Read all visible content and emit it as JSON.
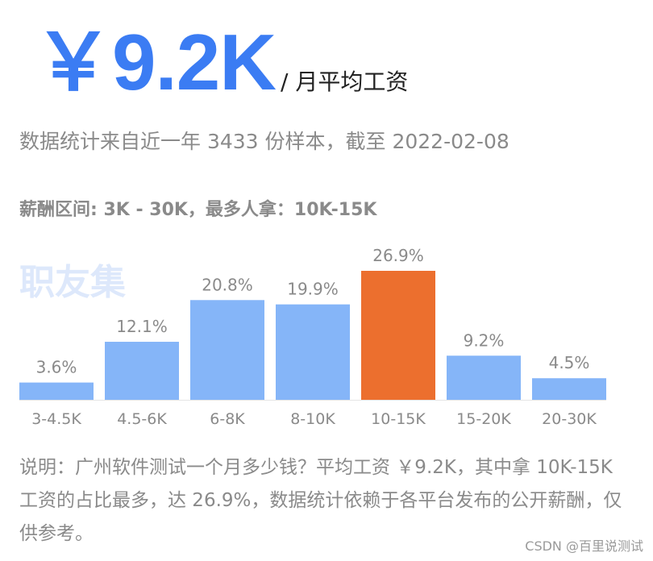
{
  "header": {
    "salary": "￥9.2K",
    "per_month_label": "/ 月平均工资"
  },
  "source_line": "数据统计来自近一年 3433 份样本，截至 2022-02-08",
  "range_line": "薪酬区间: 3K - 30K，最多人拿：10K-15K",
  "watermark_text": "职友集",
  "chart_data": {
    "type": "bar",
    "categories": [
      "3-4.5K",
      "4.5-6K",
      "6-8K",
      "8-10K",
      "10-15K",
      "15-20K",
      "20-30K"
    ],
    "values": [
      3.6,
      12.1,
      20.8,
      19.9,
      26.9,
      9.2,
      4.5
    ],
    "value_labels": [
      "3.6%",
      "12.1%",
      "20.8%",
      "19.9%",
      "26.9%",
      "9.2%",
      "4.5%"
    ],
    "unit": "%",
    "highlight_index": 4,
    "colors": {
      "default": "#85b5f8",
      "highlight": "#ec6f2e",
      "label": "#8a8a8a",
      "baseline": "#e4e4e4"
    },
    "ylim": [
      0,
      26.9
    ],
    "grid": false,
    "legend": "none"
  },
  "note": "说明：广州软件测试一个月多少钱？平均工资 ￥9.2K，其中拿 10K-15K 工资的占比最多，达 26.9%，数据统计依赖于各平台发布的公开薪酬，仅供参考。",
  "credit": "CSDN @百里说测试"
}
